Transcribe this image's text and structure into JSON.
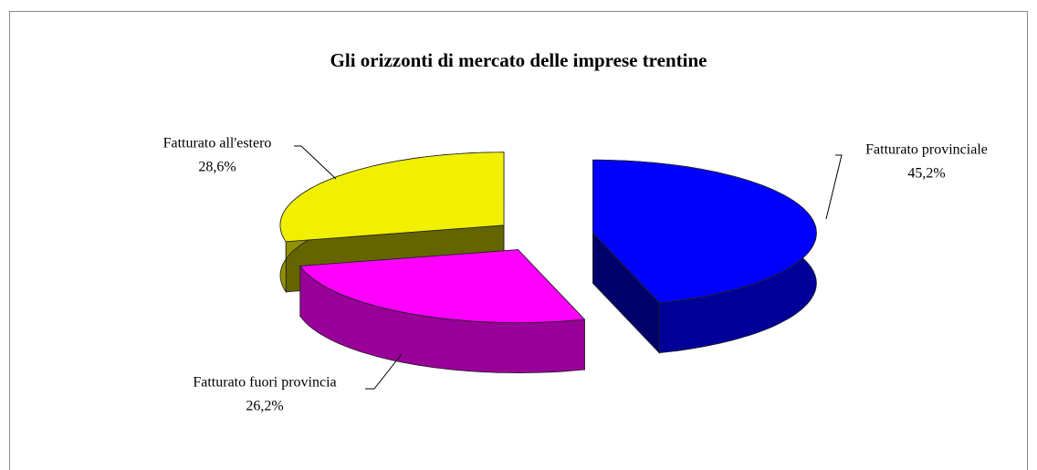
{
  "chart_data": {
    "type": "pie3d",
    "title": "Gli orizzonti di mercato delle imprese trentine",
    "categories": [
      "Fatturato provinciale",
      "Fatturato fuori provincia",
      "Fatturato all'estero"
    ],
    "values": [
      45.2,
      26.2,
      28.6
    ],
    "value_labels": [
      "45,2%",
      "26,2%",
      "28,6%"
    ],
    "colors": [
      "#0000ff",
      "#ff00ff",
      "#f0f000"
    ]
  }
}
